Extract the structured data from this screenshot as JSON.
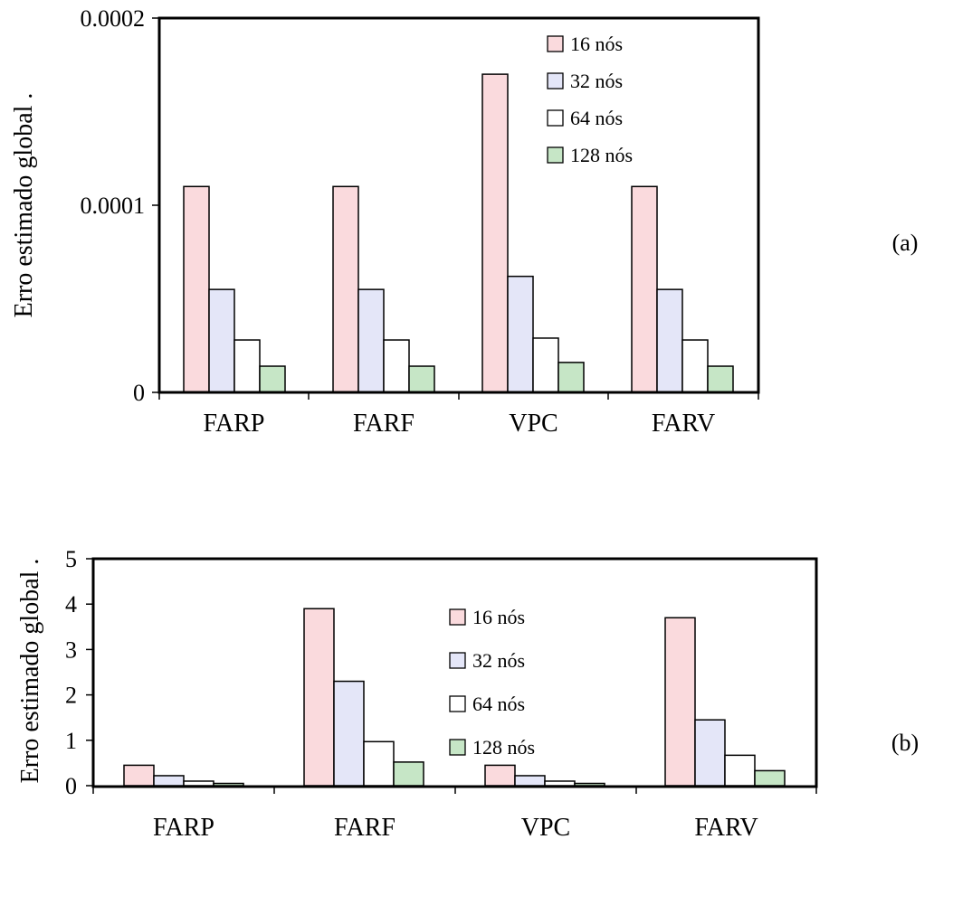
{
  "chart_data": [
    {
      "type": "bar",
      "panel_label": "(a)",
      "ylabel": "Erro estimado global .",
      "categories": [
        "FARP",
        "FARF",
        "VPC",
        "FARV"
      ],
      "ylim": [
        0,
        0.0002
      ],
      "yticks": [
        0,
        0.0001,
        0.0002
      ],
      "ytick_labels": [
        "0",
        "0.0001",
        "0.0002"
      ],
      "legend_position": "top-right",
      "grid": false,
      "series": [
        {
          "name": "16 nós",
          "color": "#fadadd",
          "values": [
            0.00011,
            0.00011,
            0.00017,
            0.00011
          ]
        },
        {
          "name": "32 nós",
          "color": "#e4e6f8",
          "values": [
            5.5e-05,
            5.5e-05,
            6.2e-05,
            5.5e-05
          ]
        },
        {
          "name": "64 nós",
          "color": "#ffffff",
          "values": [
            2.8e-05,
            2.8e-05,
            2.9e-05,
            2.8e-05
          ]
        },
        {
          "name": "128 nós",
          "color": "#c6e6c6",
          "values": [
            1.4e-05,
            1.4e-05,
            1.6e-05,
            1.4e-05
          ]
        }
      ]
    },
    {
      "type": "bar",
      "panel_label": "(b)",
      "ylabel": "Erro estimado global .",
      "categories": [
        "FARP",
        "FARF",
        "VPC",
        "FARV"
      ],
      "ylim": [
        0,
        5
      ],
      "yticks": [
        0,
        1,
        2,
        3,
        4,
        5
      ],
      "ytick_labels": [
        "0",
        "1",
        "2",
        "3",
        "4",
        "5"
      ],
      "legend_position": "top-center",
      "grid": false,
      "series": [
        {
          "name": "16 nós",
          "color": "#fadadd",
          "values": [
            0.45,
            3.9,
            0.45,
            3.7
          ]
        },
        {
          "name": "32 nós",
          "color": "#e4e6f8",
          "values": [
            0.22,
            2.3,
            0.22,
            1.45
          ]
        },
        {
          "name": "64 nós",
          "color": "#ffffff",
          "values": [
            0.1,
            0.97,
            0.1,
            0.67
          ]
        },
        {
          "name": "128 nós",
          "color": "#c6e6c6",
          "values": [
            0.05,
            0.52,
            0.05,
            0.33
          ]
        }
      ]
    }
  ]
}
